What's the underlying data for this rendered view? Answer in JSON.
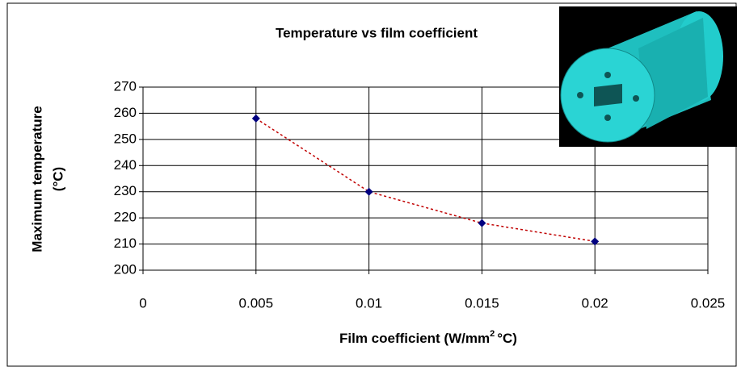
{
  "chart_data": {
    "type": "scatter",
    "title": "Temperature vs film coefficient",
    "x_label": [
      "Film coefficient (W/mm",
      "2",
      "°C)"
    ],
    "y_label": [
      "Maximum temperature",
      "(°C)"
    ],
    "x": [
      0.005,
      0.01,
      0.015,
      0.02
    ],
    "series": [
      {
        "color": "#000080",
        "values": [
          258,
          230,
          218,
          211
        ]
      }
    ],
    "trendline_color": "#c00000",
    "xlim": [
      0,
      0.025
    ],
    "xticks": [
      0,
      0.005,
      0.01,
      0.015,
      0.02,
      0.025
    ],
    "ylim": [
      200,
      270
    ],
    "yticks": [
      200,
      210,
      220,
      230,
      240,
      250,
      260,
      270
    ],
    "grid": true
  }
}
